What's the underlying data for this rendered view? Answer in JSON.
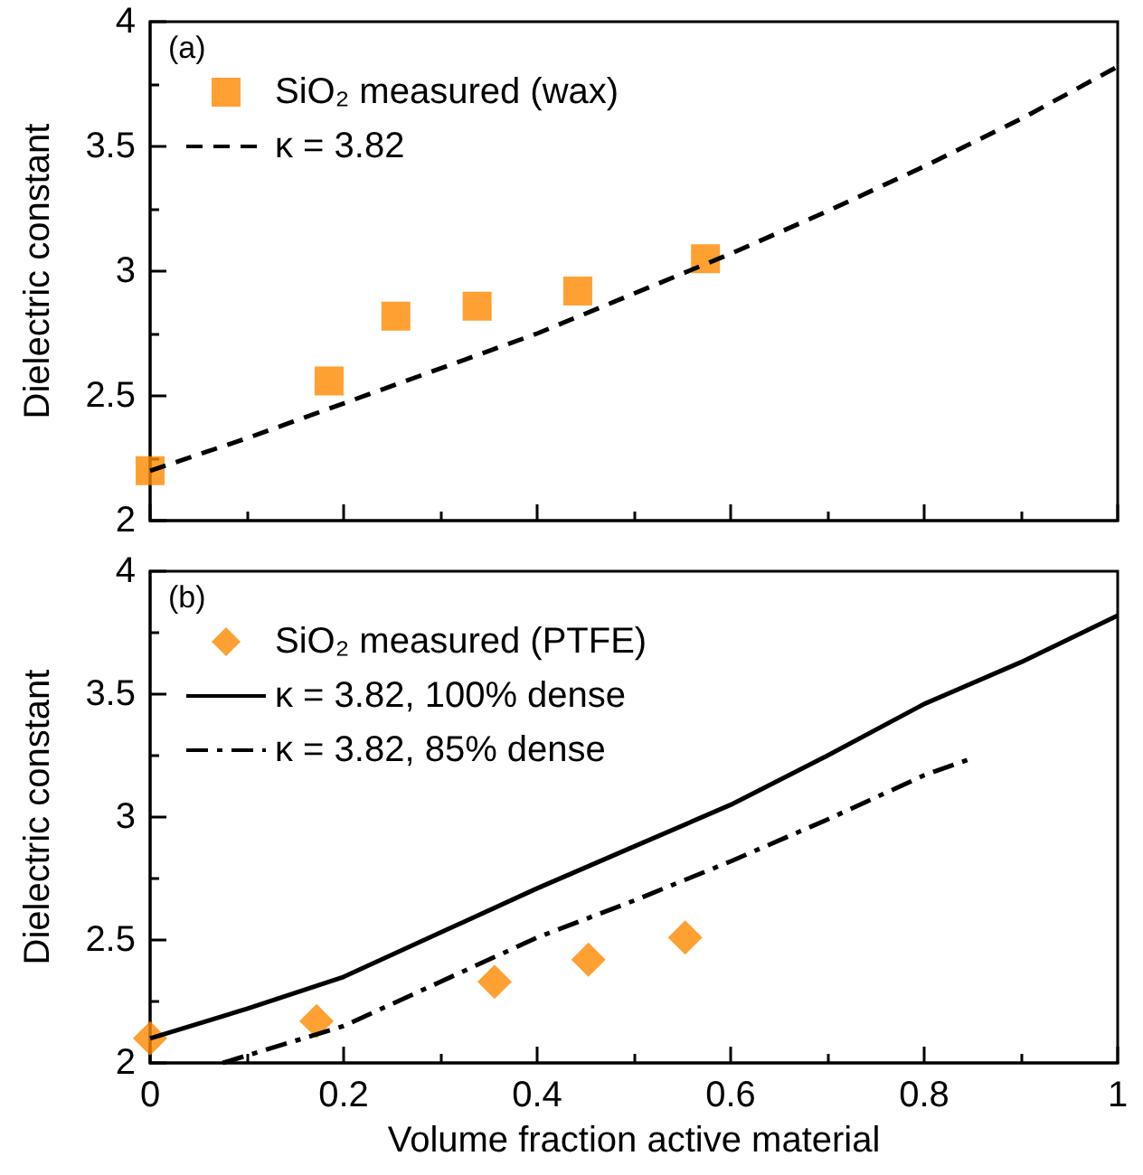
{
  "chart_data": [
    {
      "type": "scatter",
      "ylabel": "Dielectric constant",
      "annotations": [
        "(a)"
      ],
      "xlim": [
        0,
        1
      ],
      "xticks": [
        0,
        0.2,
        0.4,
        0.6,
        0.8,
        1
      ],
      "ylim": [
        2,
        4
      ],
      "yticks": [
        2,
        2.5,
        3,
        3.5,
        4
      ],
      "tick_labels": "y",
      "legend": "top left",
      "grid": false,
      "series": [
        {
          "name": "SiO₂ measured (wax)",
          "marker": "square",
          "color": "#ff8800",
          "x": [
            0,
            0.185,
            0.254,
            0.338,
            0.442,
            0.574
          ],
          "values": [
            2.2,
            2.56,
            2.82,
            2.86,
            2.92,
            3.05
          ]
        },
        {
          "name": "κ = 3.82",
          "type": "line",
          "marker": "none",
          "line_style": "dashed",
          "color": "#000000",
          "x": [
            0,
            0.1,
            0.2,
            0.3,
            0.4,
            0.5,
            0.6,
            0.7,
            0.8,
            0.9,
            1
          ],
          "values": [
            2.2,
            2.33,
            2.47,
            2.61,
            2.75,
            2.91,
            3.07,
            3.24,
            3.42,
            3.61,
            3.82
          ]
        }
      ]
    },
    {
      "type": "scatter",
      "xlabel": "Volume fraction active material",
      "ylabel": "Dielectric constant",
      "annotations": [
        "(b)"
      ],
      "xlim": [
        0,
        1
      ],
      "xticks": [
        0,
        0.2,
        0.4,
        0.6,
        0.8,
        1
      ],
      "ylim": [
        2,
        4
      ],
      "yticks": [
        2,
        2.5,
        3,
        3.5,
        4
      ],
      "legend": "top left",
      "grid": false,
      "series": [
        {
          "name": "SiO₂ measured (PTFE)",
          "marker": "diamond",
          "color": "#ff8800",
          "x": [
            0,
            0.172,
            0.356,
            0.453,
            0.553
          ],
          "values": [
            2.1,
            2.17,
            2.33,
            2.42,
            2.51
          ]
        },
        {
          "name": "κ = 3.82, 100% dense",
          "type": "line",
          "marker": "none",
          "line_style": "solid",
          "color": "#000000",
          "x": [
            0,
            0.1,
            0.2,
            0.3,
            0.4,
            0.5,
            0.6,
            0.7,
            0.8,
            0.9,
            1
          ],
          "values": [
            2.1,
            2.22,
            2.35,
            2.53,
            2.71,
            2.88,
            3.05,
            3.25,
            3.46,
            3.63,
            3.82
          ]
        },
        {
          "name": "κ = 3.82, 85% dense",
          "type": "line",
          "marker": "none",
          "line_style": "dashdot",
          "color": "#000000",
          "x": [
            0.075,
            0.2,
            0.3,
            0.4,
            0.5,
            0.6,
            0.7,
            0.8,
            0.85
          ],
          "values": [
            2.0,
            2.15,
            2.33,
            2.51,
            2.66,
            2.82,
            2.99,
            3.17,
            3.24
          ]
        }
      ]
    }
  ]
}
